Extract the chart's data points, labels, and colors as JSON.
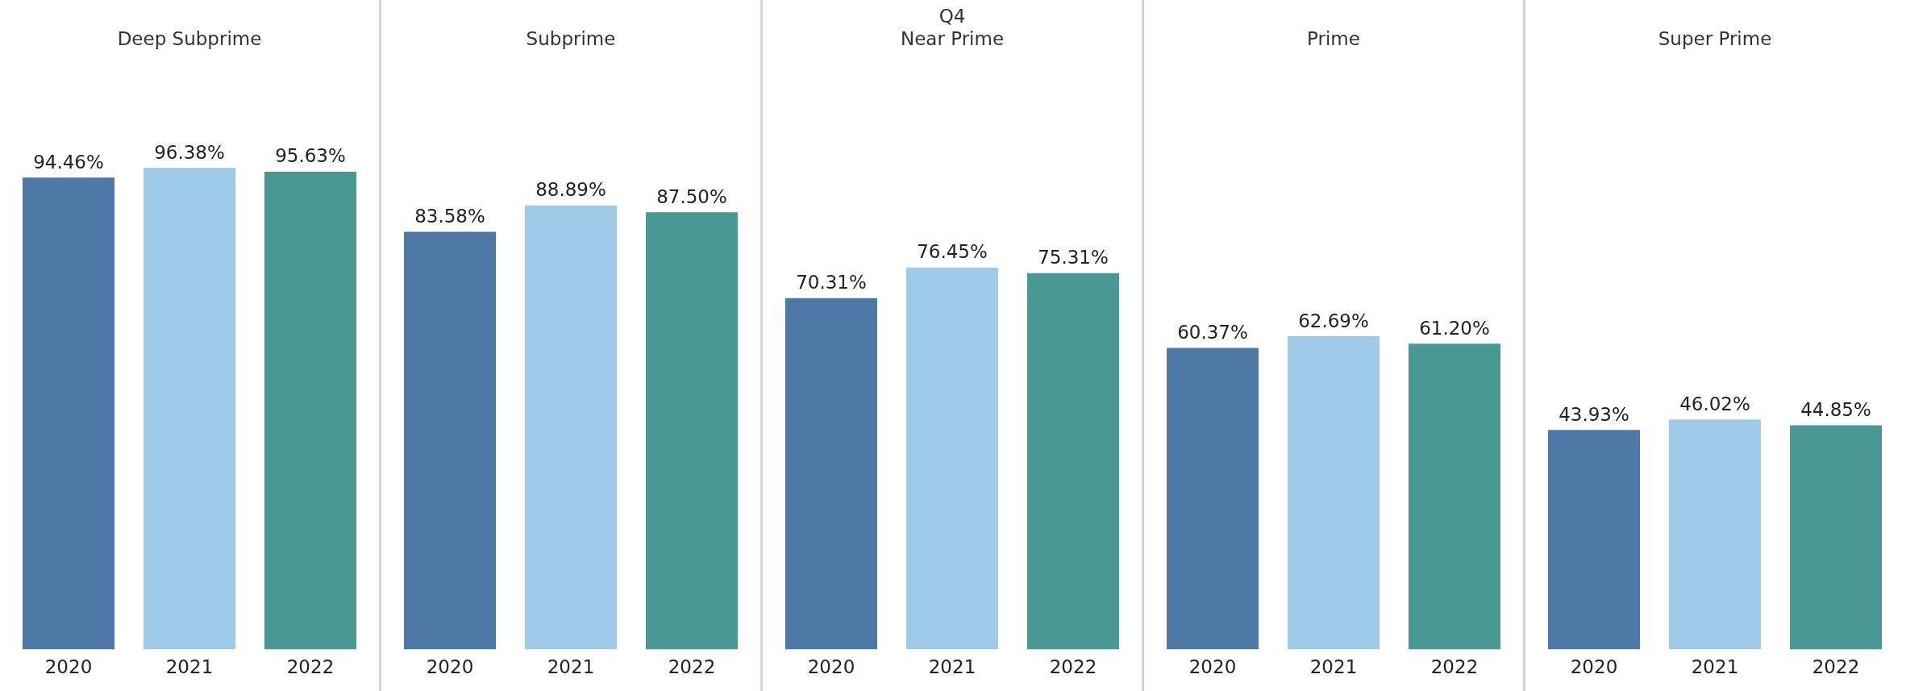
{
  "chart_data": [
    {
      "type": "bar",
      "title": "Deep Subprime",
      "categories": [
        "2020",
        "2021",
        "2022"
      ],
      "values": [
        94.46,
        96.38,
        95.63
      ],
      "colors": [
        "#4e79a7",
        "#a0cbe8",
        "#499894"
      ],
      "value_labels": [
        "94.46%",
        "96.38%",
        "95.63%"
      ],
      "tick_labels": "x"
    },
    {
      "type": "bar",
      "title": "Subprime",
      "categories": [
        "2020",
        "2021",
        "2022"
      ],
      "values": [
        83.58,
        88.89,
        87.5
      ],
      "colors": [
        "#4e79a7",
        "#a0cbe8",
        "#499894"
      ],
      "value_labels": [
        "83.58%",
        "88.89%",
        "87.50%"
      ],
      "tick_labels": "x"
    },
    {
      "type": "bar",
      "title": "Q4",
      "subtitle": "Near Prime",
      "categories": [
        "2020",
        "2021",
        "2022"
      ],
      "values": [
        70.31,
        76.45,
        75.31
      ],
      "colors": [
        "#4e79a7",
        "#a0cbe8",
        "#499894"
      ],
      "value_labels": [
        "70.31%",
        "76.45%",
        "75.31%"
      ],
      "tick_labels": "x"
    },
    {
      "type": "bar",
      "title": "Prime",
      "categories": [
        "2020",
        "2021",
        "2022"
      ],
      "values": [
        60.37,
        62.69,
        61.2
      ],
      "colors": [
        "#4e79a7",
        "#a0cbe8",
        "#499894"
      ],
      "value_labels": [
        "60.37%",
        "62.69%",
        "61.20%"
      ],
      "tick_labels": "x"
    },
    {
      "type": "bar",
      "title": "Super Prime",
      "categories": [
        "2020",
        "2021",
        "2022"
      ],
      "values": [
        43.93,
        46.02,
        44.85
      ],
      "colors": [
        "#4e79a7",
        "#a0cbe8",
        "#499894"
      ],
      "value_labels": [
        "43.93%",
        "46.02%",
        "44.85%"
      ],
      "tick_labels": "x"
    }
  ]
}
